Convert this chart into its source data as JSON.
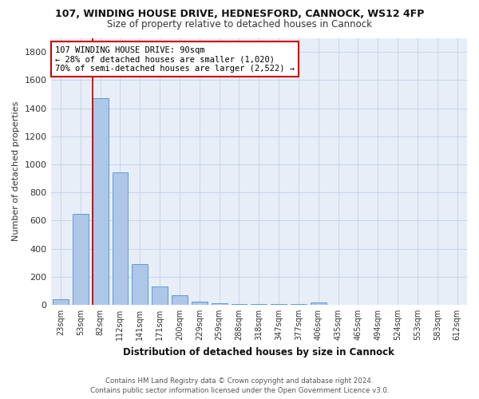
{
  "title": "107, WINDING HOUSE DRIVE, HEDNESFORD, CANNOCK, WS12 4FP",
  "subtitle": "Size of property relative to detached houses in Cannock",
  "xlabel": "Distribution of detached houses by size in Cannock",
  "ylabel": "Number of detached properties",
  "footer_line1": "Contains HM Land Registry data © Crown copyright and database right 2024.",
  "footer_line2": "Contains public sector information licensed under the Open Government Licence v3.0.",
  "bins": [
    "23sqm",
    "53sqm",
    "82sqm",
    "112sqm",
    "141sqm",
    "171sqm",
    "200sqm",
    "229sqm",
    "259sqm",
    "288sqm",
    "318sqm",
    "347sqm",
    "377sqm",
    "406sqm",
    "435sqm",
    "465sqm",
    "494sqm",
    "524sqm",
    "553sqm",
    "583sqm",
    "612sqm"
  ],
  "values": [
    40,
    650,
    1470,
    940,
    290,
    130,
    65,
    25,
    10,
    5,
    5,
    5,
    5,
    15,
    0,
    0,
    0,
    0,
    0,
    0,
    0
  ],
  "bar_color": "#aec6e8",
  "bar_edge_color": "#5b9bd5",
  "grid_color": "#c8d4e8",
  "bg_color": "#e8eef8",
  "red_line_color": "#aa0000",
  "annotation_text_line1": "107 WINDING HOUSE DRIVE: 90sqm",
  "annotation_text_line2": "← 28% of detached houses are smaller (1,020)",
  "annotation_text_line3": "70% of semi-detached houses are larger (2,522) →",
  "annotation_box_color": "#ffffff",
  "annotation_box_edge_color": "#cc0000",
  "ylim": [
    0,
    1900
  ],
  "yticks": [
    0,
    200,
    400,
    600,
    800,
    1000,
    1200,
    1400,
    1600,
    1800
  ],
  "red_line_x": 1.62
}
